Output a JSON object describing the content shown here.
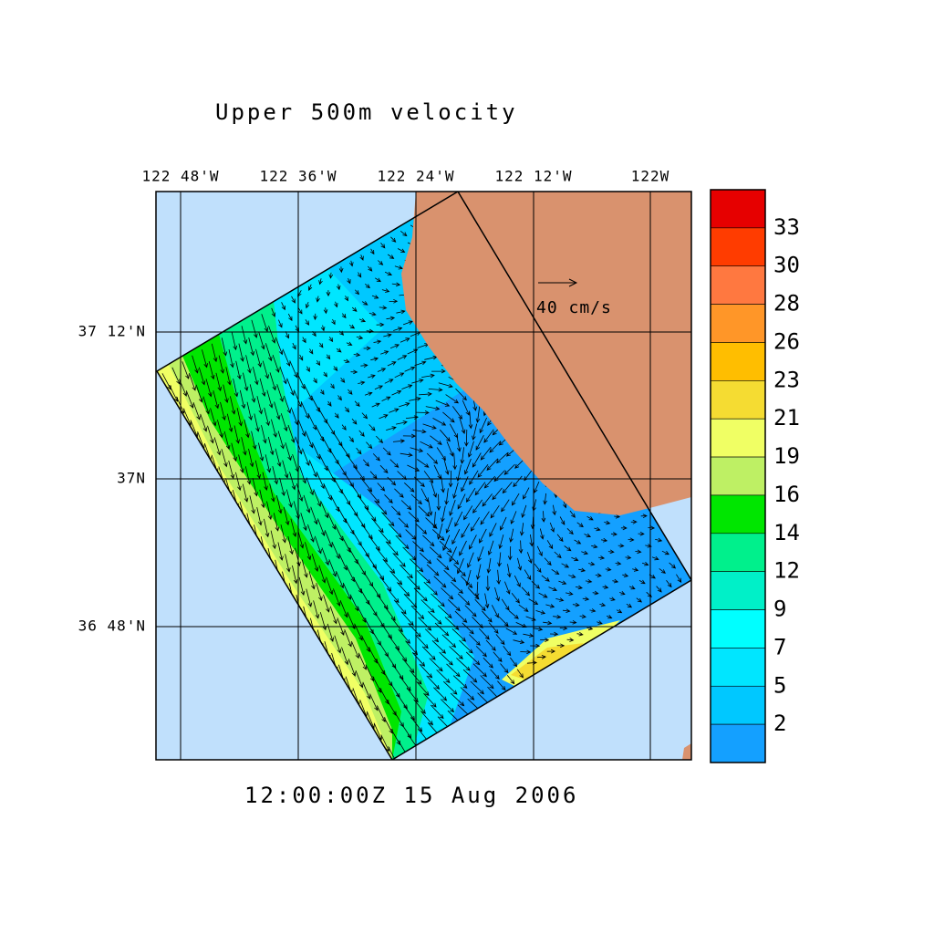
{
  "title": "Upper 500m velocity",
  "timestamp": "12:00:00Z  15 Aug 2006",
  "x_ticks": [
    "122 48'W",
    "122 36'W",
    "122 24'W",
    "122 12'W",
    "122W"
  ],
  "y_ticks": [
    "37 12'N",
    "37N",
    "36 48'N"
  ],
  "reference_vector": "40 cm/s",
  "colorbar": {
    "labels": [
      33,
      30,
      28,
      26,
      23,
      21,
      19,
      16,
      14,
      12,
      9,
      7,
      5,
      2
    ],
    "colors": [
      "#e60000",
      "#ff3c00",
      "#ff7840",
      "#ff9628",
      "#ffbe00",
      "#f5dc32",
      "#f0ff64",
      "#bef064",
      "#00e600",
      "#00f08c",
      "#00f0c8",
      "#00ffff",
      "#00e6ff",
      "#00c8ff",
      "#14a0ff"
    ]
  }
}
